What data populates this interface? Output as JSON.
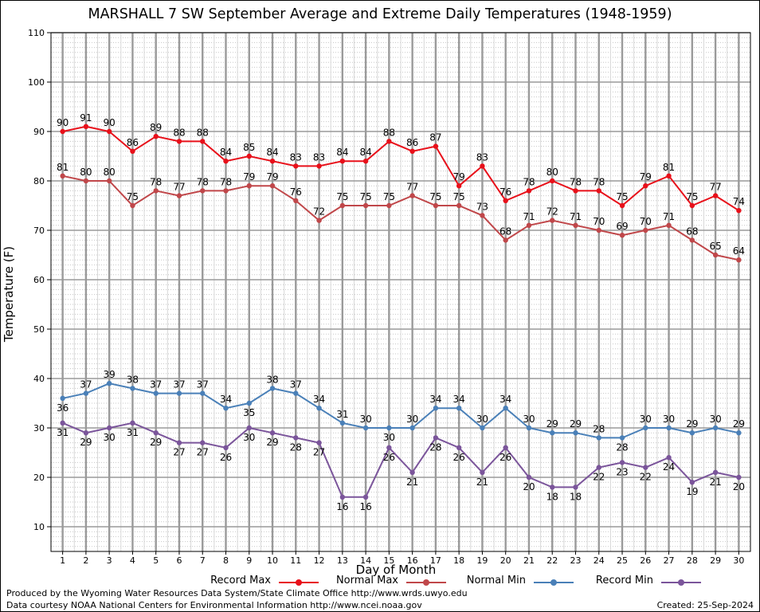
{
  "title": "MARSHALL 7 SW September Average and Extreme Daily Temperatures (1948-1959)",
  "footer": {
    "line1": "Produced by the Wyoming Water Resources Data System/State Climate Office http://www.wrds.uwyo.edu",
    "line2": "Data courtesy NOAA National Centers for Environmental Information http://www.ncei.noaa.gov",
    "created": "Created:  25-Sep-2024"
  },
  "chart_data": {
    "type": "line",
    "xlabel": "Day of Month",
    "ylabel": "Temperature (F)",
    "ylim": [
      5,
      110
    ],
    "yticks": [
      10,
      20,
      30,
      40,
      50,
      60,
      70,
      80,
      90,
      100,
      110
    ],
    "x": [
      1,
      2,
      3,
      4,
      5,
      6,
      7,
      8,
      9,
      10,
      11,
      12,
      13,
      14,
      15,
      16,
      17,
      18,
      19,
      20,
      21,
      22,
      23,
      24,
      25,
      26,
      27,
      28,
      29,
      30
    ],
    "grid": true,
    "legend_position": "bottom",
    "series": [
      {
        "name": "Record Max",
        "color": "#e8101a",
        "label_position": "above",
        "values": [
          90,
          91,
          90,
          86,
          89,
          88,
          88,
          84,
          85,
          84,
          83,
          83,
          84,
          84,
          88,
          86,
          87,
          79,
          83,
          76,
          78,
          80,
          78,
          78,
          75,
          79,
          81,
          75,
          77,
          74
        ]
      },
      {
        "name": "Normal Max",
        "color": "#c0474a",
        "label_position": "above",
        "values": [
          81,
          80,
          80,
          75,
          78,
          77,
          78,
          78,
          79,
          79,
          76,
          72,
          75,
          75,
          75,
          77,
          75,
          75,
          73,
          68,
          71,
          72,
          71,
          70,
          69,
          70,
          71,
          68,
          65,
          64
        ]
      },
      {
        "name": "Normal Min",
        "color": "#4a80b8",
        "label_position": "mixed",
        "values": [
          36,
          37,
          39,
          38,
          37,
          37,
          37,
          34,
          35,
          38,
          37,
          34,
          31,
          30,
          30,
          30,
          34,
          34,
          30,
          34,
          30,
          29,
          29,
          28,
          28,
          30,
          30,
          29,
          30,
          29
        ]
      },
      {
        "name": "Record Min",
        "color": "#7b559b",
        "label_position": "mixed",
        "values": [
          31,
          29,
          30,
          31,
          29,
          27,
          27,
          26,
          30,
          29,
          28,
          27,
          16,
          16,
          26,
          21,
          28,
          26,
          21,
          26,
          20,
          18,
          18,
          22,
          23,
          22,
          24,
          19,
          21,
          20
        ]
      }
    ]
  }
}
